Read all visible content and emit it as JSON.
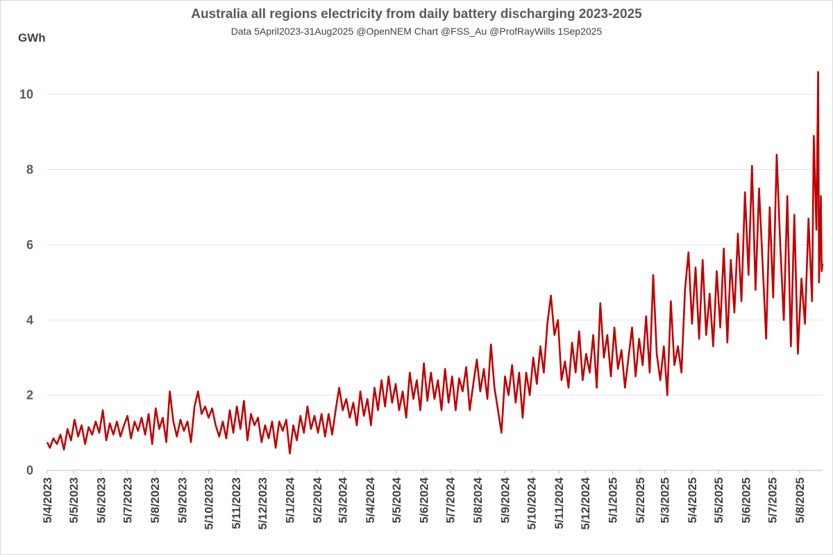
{
  "chart_data": {
    "type": "line",
    "title": "Australia all regions electricity from daily battery discharging 2023-2025",
    "subtitle": "Data 5April2023-31Aug2025 @OpenNEM Chart @FSS_Au @ProfRayWills 1Sep2025",
    "ylabel": "GWh",
    "xlabel": "",
    "ylim": [
      0,
      11
    ],
    "yticks": [
      0,
      2,
      4,
      6,
      8,
      10
    ],
    "grid": true,
    "legend": "none",
    "x_tick_labels": [
      "5/4/2023",
      "5/5/2023",
      "5/6/2023",
      "5/7/2023",
      "5/8/2023",
      "5/9/2023",
      "5/10/2023",
      "5/11/2023",
      "5/12/2023",
      "5/1/2024",
      "5/2/2024",
      "5/3/2024",
      "5/4/2024",
      "5/5/2024",
      "5/6/2024",
      "5/7/2024",
      "5/8/2024",
      "5/9/2024",
      "5/10/2024",
      "5/11/2024",
      "5/12/2024",
      "5/1/2025",
      "5/2/2025",
      "5/3/2025",
      "5/4/2025",
      "5/5/2025",
      "5/6/2025",
      "5/7/2025",
      "5/8/2025"
    ],
    "x_range": [
      "2023-04-05",
      "2025-08-31"
    ],
    "series": [
      {
        "color": "#c00000",
        "points": [
          [
            "2023-04-05",
            0.75
          ],
          [
            "2023-04-08",
            0.6
          ],
          [
            "2023-04-12",
            0.85
          ],
          [
            "2023-04-16",
            0.7
          ],
          [
            "2023-04-20",
            0.95
          ],
          [
            "2023-04-24",
            0.55
          ],
          [
            "2023-04-28",
            1.1
          ],
          [
            "2023-05-02",
            0.8
          ],
          [
            "2023-05-06",
            1.35
          ],
          [
            "2023-05-10",
            0.9
          ],
          [
            "2023-05-14",
            1.2
          ],
          [
            "2023-05-18",
            0.7
          ],
          [
            "2023-05-22",
            1.15
          ],
          [
            "2023-05-26",
            0.95
          ],
          [
            "2023-05-30",
            1.3
          ],
          [
            "2023-06-03",
            1.0
          ],
          [
            "2023-06-07",
            1.6
          ],
          [
            "2023-06-11",
            0.8
          ],
          [
            "2023-06-15",
            1.25
          ],
          [
            "2023-06-19",
            0.95
          ],
          [
            "2023-06-23",
            1.3
          ],
          [
            "2023-06-27",
            0.9
          ],
          [
            "2023-07-01",
            1.2
          ],
          [
            "2023-07-05",
            1.45
          ],
          [
            "2023-07-09",
            0.85
          ],
          [
            "2023-07-13",
            1.3
          ],
          [
            "2023-07-17",
            1.05
          ],
          [
            "2023-07-21",
            1.4
          ],
          [
            "2023-07-25",
            0.95
          ],
          [
            "2023-07-29",
            1.5
          ],
          [
            "2023-08-02",
            0.7
          ],
          [
            "2023-08-06",
            1.65
          ],
          [
            "2023-08-10",
            1.1
          ],
          [
            "2023-08-14",
            1.4
          ],
          [
            "2023-08-18",
            0.75
          ],
          [
            "2023-08-22",
            2.1
          ],
          [
            "2023-08-26",
            1.3
          ],
          [
            "2023-08-30",
            0.9
          ],
          [
            "2023-09-03",
            1.35
          ],
          [
            "2023-09-07",
            1.05
          ],
          [
            "2023-09-11",
            1.3
          ],
          [
            "2023-09-15",
            0.75
          ],
          [
            "2023-09-19",
            1.7
          ],
          [
            "2023-09-23",
            2.1
          ],
          [
            "2023-09-27",
            1.5
          ],
          [
            "2023-10-01",
            1.7
          ],
          [
            "2023-10-05",
            1.4
          ],
          [
            "2023-10-09",
            1.65
          ],
          [
            "2023-10-13",
            1.2
          ],
          [
            "2023-10-17",
            0.9
          ],
          [
            "2023-10-21",
            1.3
          ],
          [
            "2023-10-25",
            0.85
          ],
          [
            "2023-10-29",
            1.6
          ],
          [
            "2023-11-02",
            1.0
          ],
          [
            "2023-11-06",
            1.7
          ],
          [
            "2023-11-10",
            1.1
          ],
          [
            "2023-11-14",
            1.85
          ],
          [
            "2023-11-18",
            0.8
          ],
          [
            "2023-11-22",
            1.5
          ],
          [
            "2023-11-26",
            1.2
          ],
          [
            "2023-11-30",
            1.4
          ],
          [
            "2023-12-04",
            0.75
          ],
          [
            "2023-12-08",
            1.2
          ],
          [
            "2023-12-12",
            0.85
          ],
          [
            "2023-12-16",
            1.3
          ],
          [
            "2023-12-20",
            0.6
          ],
          [
            "2023-12-24",
            1.3
          ],
          [
            "2023-12-28",
            1.05
          ],
          [
            "2024-01-01",
            1.35
          ],
          [
            "2024-01-05",
            0.45
          ],
          [
            "2024-01-09",
            1.2
          ],
          [
            "2024-01-13",
            0.8
          ],
          [
            "2024-01-17",
            1.45
          ],
          [
            "2024-01-21",
            1.0
          ],
          [
            "2024-01-25",
            1.7
          ],
          [
            "2024-01-29",
            1.1
          ],
          [
            "2024-02-02",
            1.45
          ],
          [
            "2024-02-06",
            1.0
          ],
          [
            "2024-02-10",
            1.5
          ],
          [
            "2024-02-14",
            0.9
          ],
          [
            "2024-02-18",
            1.5
          ],
          [
            "2024-02-22",
            0.95
          ],
          [
            "2024-02-26",
            1.6
          ],
          [
            "2024-03-01",
            2.2
          ],
          [
            "2024-03-05",
            1.6
          ],
          [
            "2024-03-09",
            1.9
          ],
          [
            "2024-03-13",
            1.4
          ],
          [
            "2024-03-17",
            1.8
          ],
          [
            "2024-03-21",
            1.2
          ],
          [
            "2024-03-25",
            2.1
          ],
          [
            "2024-03-29",
            1.45
          ],
          [
            "2024-04-02",
            1.9
          ],
          [
            "2024-04-06",
            1.2
          ],
          [
            "2024-04-10",
            2.2
          ],
          [
            "2024-04-14",
            1.6
          ],
          [
            "2024-04-18",
            2.4
          ],
          [
            "2024-04-22",
            1.7
          ],
          [
            "2024-04-26",
            2.5
          ],
          [
            "2024-04-30",
            1.8
          ],
          [
            "2024-05-04",
            2.3
          ],
          [
            "2024-05-08",
            1.6
          ],
          [
            "2024-05-12",
            2.1
          ],
          [
            "2024-05-16",
            1.4
          ],
          [
            "2024-05-20",
            2.6
          ],
          [
            "2024-05-24",
            1.9
          ],
          [
            "2024-05-28",
            2.4
          ],
          [
            "2024-06-01",
            1.6
          ],
          [
            "2024-06-05",
            2.85
          ],
          [
            "2024-06-09",
            1.85
          ],
          [
            "2024-06-13",
            2.6
          ],
          [
            "2024-06-17",
            1.9
          ],
          [
            "2024-06-21",
            2.4
          ],
          [
            "2024-06-25",
            1.6
          ],
          [
            "2024-06-29",
            2.7
          ],
          [
            "2024-07-03",
            1.8
          ],
          [
            "2024-07-07",
            2.5
          ],
          [
            "2024-07-11",
            1.6
          ],
          [
            "2024-07-15",
            2.45
          ],
          [
            "2024-07-19",
            2.1
          ],
          [
            "2024-07-23",
            2.75
          ],
          [
            "2024-07-27",
            1.6
          ],
          [
            "2024-07-31",
            2.3
          ],
          [
            "2024-08-04",
            2.95
          ],
          [
            "2024-08-08",
            2.1
          ],
          [
            "2024-08-12",
            2.7
          ],
          [
            "2024-08-16",
            1.9
          ],
          [
            "2024-08-20",
            3.35
          ],
          [
            "2024-08-24",
            2.2
          ],
          [
            "2024-08-28",
            1.6
          ],
          [
            "2024-09-01",
            1.0
          ],
          [
            "2024-09-05",
            2.5
          ],
          [
            "2024-09-09",
            2.0
          ],
          [
            "2024-09-13",
            2.8
          ],
          [
            "2024-09-17",
            1.8
          ],
          [
            "2024-09-21",
            2.6
          ],
          [
            "2024-09-25",
            1.4
          ],
          [
            "2024-09-29",
            2.6
          ],
          [
            "2024-10-03",
            2.0
          ],
          [
            "2024-10-07",
            3.0
          ],
          [
            "2024-10-11",
            2.3
          ],
          [
            "2024-10-15",
            3.3
          ],
          [
            "2024-10-19",
            2.6
          ],
          [
            "2024-10-23",
            3.9
          ],
          [
            "2024-10-27",
            4.65
          ],
          [
            "2024-10-31",
            3.6
          ],
          [
            "2024-11-04",
            4.0
          ],
          [
            "2024-11-08",
            2.4
          ],
          [
            "2024-11-12",
            2.9
          ],
          [
            "2024-11-16",
            2.2
          ],
          [
            "2024-11-20",
            3.4
          ],
          [
            "2024-11-24",
            2.6
          ],
          [
            "2024-11-28",
            3.7
          ],
          [
            "2024-12-02",
            2.4
          ],
          [
            "2024-12-06",
            3.1
          ],
          [
            "2024-12-10",
            2.6
          ],
          [
            "2024-12-14",
            3.6
          ],
          [
            "2024-12-18",
            2.2
          ],
          [
            "2024-12-22",
            4.45
          ],
          [
            "2024-12-26",
            3.0
          ],
          [
            "2024-12-30",
            3.6
          ],
          [
            "2025-01-03",
            2.5
          ],
          [
            "2025-01-07",
            3.8
          ],
          [
            "2025-01-11",
            2.7
          ],
          [
            "2025-01-15",
            3.2
          ],
          [
            "2025-01-19",
            2.2
          ],
          [
            "2025-01-23",
            3.0
          ],
          [
            "2025-01-27",
            3.8
          ],
          [
            "2025-01-31",
            2.5
          ],
          [
            "2025-02-04",
            3.5
          ],
          [
            "2025-02-08",
            2.8
          ],
          [
            "2025-02-12",
            4.1
          ],
          [
            "2025-02-16",
            2.6
          ],
          [
            "2025-02-20",
            5.2
          ],
          [
            "2025-02-24",
            3.1
          ],
          [
            "2025-02-28",
            2.4
          ],
          [
            "2025-03-04",
            3.3
          ],
          [
            "2025-03-08",
            2.0
          ],
          [
            "2025-03-12",
            4.5
          ],
          [
            "2025-03-16",
            2.8
          ],
          [
            "2025-03-20",
            3.3
          ],
          [
            "2025-03-24",
            2.6
          ],
          [
            "2025-03-28",
            4.8
          ],
          [
            "2025-04-01",
            5.8
          ],
          [
            "2025-04-05",
            3.9
          ],
          [
            "2025-04-09",
            5.4
          ],
          [
            "2025-04-13",
            3.5
          ],
          [
            "2025-04-17",
            5.6
          ],
          [
            "2025-04-21",
            3.6
          ],
          [
            "2025-04-25",
            4.7
          ],
          [
            "2025-04-29",
            3.3
          ],
          [
            "2025-05-03",
            5.3
          ],
          [
            "2025-05-07",
            3.8
          ],
          [
            "2025-05-11",
            5.9
          ],
          [
            "2025-05-15",
            3.4
          ],
          [
            "2025-05-19",
            5.6
          ],
          [
            "2025-05-23",
            4.2
          ],
          [
            "2025-05-27",
            6.3
          ],
          [
            "2025-05-31",
            4.5
          ],
          [
            "2025-06-04",
            7.4
          ],
          [
            "2025-06-08",
            5.2
          ],
          [
            "2025-06-12",
            8.1
          ],
          [
            "2025-06-16",
            4.8
          ],
          [
            "2025-06-20",
            7.5
          ],
          [
            "2025-06-24",
            5.5
          ],
          [
            "2025-06-28",
            3.5
          ],
          [
            "2025-07-02",
            7.0
          ],
          [
            "2025-07-06",
            4.6
          ],
          [
            "2025-07-10",
            8.4
          ],
          [
            "2025-07-14",
            6.0
          ],
          [
            "2025-07-18",
            4.0
          ],
          [
            "2025-07-22",
            7.3
          ],
          [
            "2025-07-26",
            3.3
          ],
          [
            "2025-07-30",
            6.8
          ],
          [
            "2025-08-03",
            3.1
          ],
          [
            "2025-08-07",
            5.1
          ],
          [
            "2025-08-11",
            3.9
          ],
          [
            "2025-08-15",
            6.7
          ],
          [
            "2025-08-19",
            4.5
          ],
          [
            "2025-08-21",
            8.9
          ],
          [
            "2025-08-24",
            6.4
          ],
          [
            "2025-08-26",
            10.6
          ],
          [
            "2025-08-27",
            5.0
          ],
          [
            "2025-08-29",
            7.3
          ],
          [
            "2025-08-30",
            5.3
          ],
          [
            "2025-08-31",
            5.5
          ]
        ]
      }
    ]
  }
}
